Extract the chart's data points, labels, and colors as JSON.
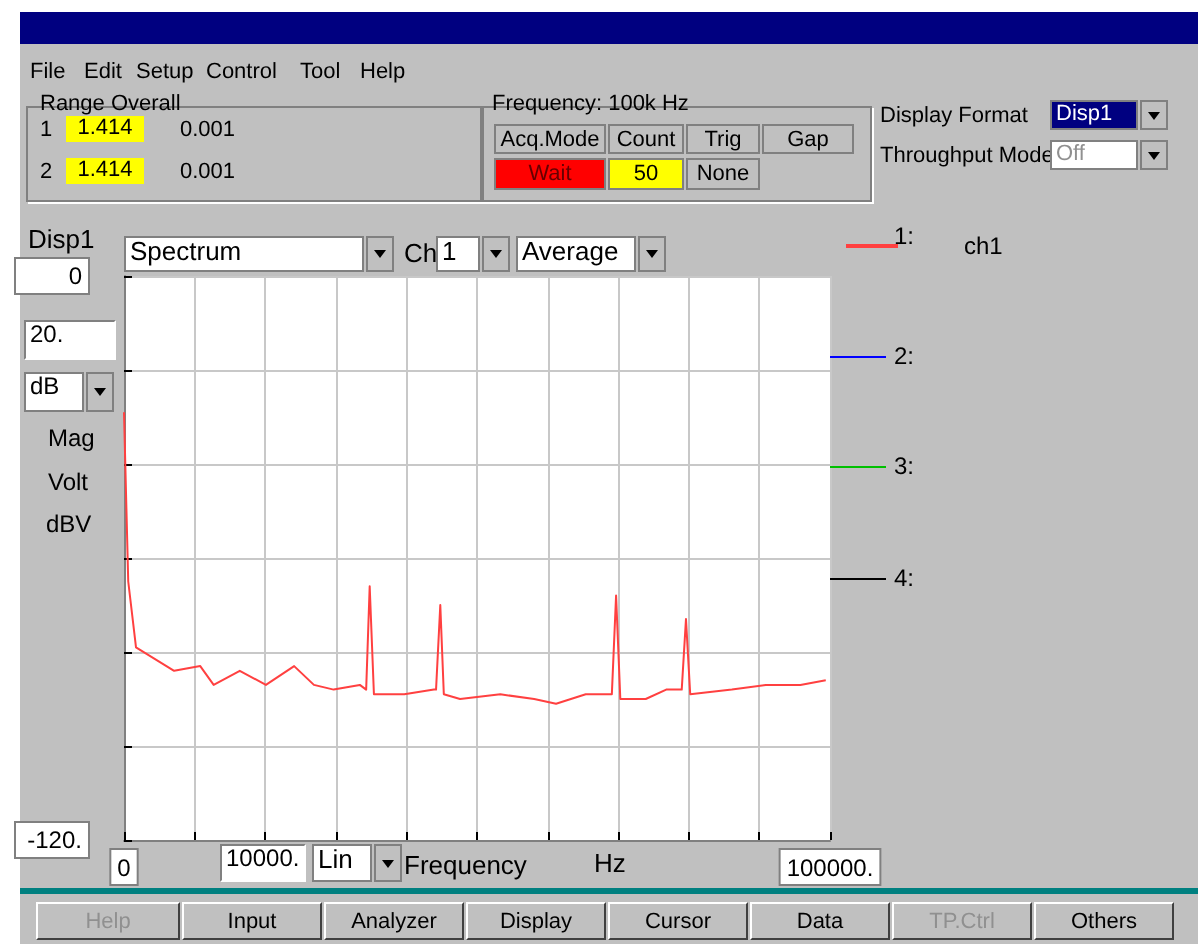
{
  "chart_data": {
    "type": "line",
    "xlabel": "Frequency",
    "legend": "right",
    "grid": true,
    "marker": "none",
    "line_style": "solid",
    "x": [
      0,
      600,
      1700,
      7100,
      10800,
      12700,
      16400,
      20100,
      24100,
      26900,
      29700,
      33400,
      34300,
      34800,
      35400,
      39700,
      43900,
      44200,
      44800,
      45300,
      47600,
      53300,
      58100,
      61200,
      65400,
      69100,
      69700,
      70300,
      73900,
      76800,
      79000,
      79600,
      80200,
      86100,
      90900,
      95800,
      99400
    ],
    "series": [
      {
        "name": "ch1",
        "color": "#ff4040",
        "values": [
          -29,
          -65,
          -79,
          -84,
          -83,
          -87,
          -84,
          -87,
          -83,
          -87,
          -88,
          -87,
          -88,
          -66,
          -89,
          -89,
          -88,
          -88,
          -70,
          -89,
          -90,
          -89,
          -90,
          -91,
          -89,
          -89,
          -68,
          -90,
          -90,
          -88,
          -88,
          -73,
          -89,
          -88,
          -87,
          -87,
          -86
        ]
      }
    ],
    "xlim": [
      0,
      100000
    ],
    "ylim": [
      -120,
      0
    ],
    "xticks": [
      {
        "value": 0,
        "label": "0"
      },
      {
        "value": 10000,
        "label": null
      },
      {
        "value": 20000,
        "label": null
      },
      {
        "value": 30000,
        "label": null
      },
      {
        "value": 40000,
        "label": null
      },
      {
        "value": 50000,
        "label": null
      },
      {
        "value": 60000,
        "label": null
      },
      {
        "value": 70000,
        "label": null
      },
      {
        "value": 80000,
        "label": null
      },
      {
        "value": 90000,
        "label": null
      },
      {
        "value": 100000,
        "label": "100000."
      }
    ],
    "yticks": [
      {
        "value": -120,
        "label": "-120."
      },
      {
        "value": -100,
        "label": null
      },
      {
        "value": -80,
        "label": null
      },
      {
        "value": -60,
        "label": null
      },
      {
        "value": -40,
        "label": null
      },
      {
        "value": -20,
        "label": null
      },
      {
        "value": 0,
        "label": "0"
      }
    ],
    "annotations": [
      "File",
      "Edit",
      "Setup",
      "Control",
      "Tool",
      "Help",
      "Range Overall",
      "1",
      "1.414",
      "0.001",
      "2",
      "1.414",
      "0.001",
      "Frequency:  100k Hz",
      "Acq.Mode",
      "Count",
      "Trig",
      "Gap",
      "Wait",
      "50",
      "None",
      "Display Format",
      "Disp1",
      "Throughput Mode",
      "Off",
      "Disp1",
      "Spectrum",
      "Ch",
      "1",
      "Average",
      "20.",
      "dB",
      "Mag",
      "Volt",
      "dBV",
      "10000.",
      "Lin",
      "Hz",
      "1:",
      "2:",
      "3:",
      "4:",
      "Help",
      "Input",
      "Analyzer",
      "Display",
      "Cursor",
      "Data",
      "TP.Ctrl",
      "Others"
    ]
  }
}
